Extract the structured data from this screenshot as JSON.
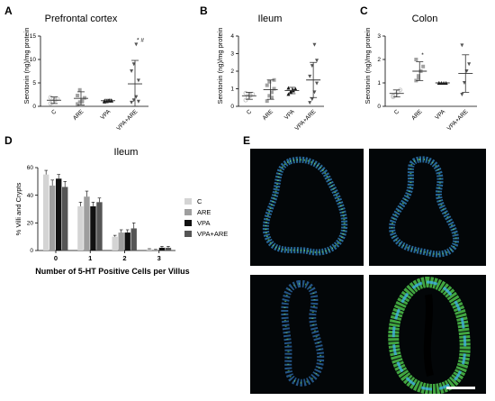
{
  "panels": {
    "A": "A",
    "B": "B",
    "C": "C",
    "D": "D",
    "E": "E"
  },
  "chart_data": [
    {
      "id": "A",
      "type": "scatter",
      "title": "Prefrontal cortex",
      "ylabel": "Serotonin (ng)/mg protein",
      "ylim": [
        0,
        15
      ],
      "yticks": [
        "0",
        "5",
        "10",
        "15"
      ],
      "categories": [
        "C",
        "ARE",
        "VPA",
        "VPA+ARE"
      ],
      "marker_colors": [
        "#c2c2c2",
        "#a2a2a2",
        "#111111",
        "#555555"
      ],
      "markers": [
        "circle",
        "square",
        "triangle-up",
        "triangle-down"
      ],
      "annotations": [
        {
          "category": "VPA+ARE",
          "text": "* #"
        }
      ],
      "series": [
        {
          "category": "C",
          "mean": 1.3,
          "sd": 0.7,
          "points": [
            0.6,
            1.0,
            1.3,
            1.6,
            1.9,
            0.9,
            1.5
          ]
        },
        {
          "category": "ARE",
          "mean": 1.7,
          "sd": 1.4,
          "points": [
            0.5,
            0.9,
            1.2,
            1.8,
            2.3,
            3.5,
            1.0
          ]
        },
        {
          "category": "VPA",
          "mean": 1.2,
          "sd": 0.3,
          "points": [
            1.0,
            1.1,
            1.2,
            1.3,
            1.2,
            1.1,
            1.3,
            1.2
          ]
        },
        {
          "category": "VPA+ARE",
          "mean": 4.8,
          "sd": 5.0,
          "points": [
            0.8,
            1.3,
            2.0,
            5.5,
            7.5,
            9.0,
            13.2,
            1.0
          ]
        }
      ]
    },
    {
      "id": "B",
      "type": "scatter",
      "title": "Ileum",
      "ylabel": "Serotonin (ng)/mg protein",
      "ylim": [
        0,
        4
      ],
      "yticks": [
        "0",
        "1",
        "2",
        "3",
        "4"
      ],
      "categories": [
        "C",
        "ARE",
        "VPA",
        "VPA+ARE"
      ],
      "marker_colors": [
        "#c2c2c2",
        "#a2a2a2",
        "#111111",
        "#555555"
      ],
      "markers": [
        "circle",
        "square",
        "triangle-up",
        "triangle-down"
      ],
      "series": [
        {
          "category": "C",
          "mean": 0.6,
          "sd": 0.2,
          "points": [
            0.35,
            0.5,
            0.6,
            0.7,
            0.75,
            0.55,
            0.65
          ]
        },
        {
          "category": "ARE",
          "mean": 0.95,
          "sd": 0.55,
          "points": [
            0.3,
            0.6,
            0.8,
            1.0,
            1.2,
            1.4,
            0.5,
            1.5
          ]
        },
        {
          "category": "VPA",
          "mean": 0.9,
          "sd": 0.18,
          "points": [
            0.7,
            0.85,
            0.9,
            1.0,
            1.05,
            0.8,
            0.95
          ]
        },
        {
          "category": "VPA+ARE",
          "mean": 1.5,
          "sd": 1.0,
          "points": [
            0.2,
            0.4,
            0.8,
            1.3,
            1.7,
            2.3,
            3.5,
            2.6
          ]
        }
      ]
    },
    {
      "id": "C",
      "type": "scatter",
      "title": "Colon",
      "ylabel": "Serotonin (ng)/mg protein",
      "ylim": [
        0,
        3
      ],
      "yticks": [
        "0",
        "1",
        "2",
        "3"
      ],
      "categories": [
        "C",
        "ARE",
        "VPA",
        "VPA+ARE"
      ],
      "marker_colors": [
        "#c2c2c2",
        "#a2a2a2",
        "#111111",
        "#555555"
      ],
      "markers": [
        "circle",
        "square",
        "triangle-up",
        "triangle-down"
      ],
      "annotations": [
        {
          "category": "ARE",
          "text": "*"
        }
      ],
      "series": [
        {
          "category": "C",
          "mean": 0.55,
          "sd": 0.15,
          "points": [
            0.4,
            0.5,
            0.6,
            0.7,
            0.45
          ]
        },
        {
          "category": "ARE",
          "mean": 1.5,
          "sd": 0.4,
          "points": [
            1.1,
            1.3,
            1.5,
            1.7,
            2.0,
            1.2
          ]
        },
        {
          "category": "VPA",
          "mean": 1.0,
          "sd": 0.0,
          "points": [
            1.0,
            1.0,
            1.0,
            1.0,
            1.0
          ]
        },
        {
          "category": "VPA+ARE",
          "mean": 1.4,
          "sd": 0.8,
          "points": [
            0.5,
            1.0,
            1.5,
            1.8,
            2.6
          ]
        }
      ]
    },
    {
      "id": "D",
      "type": "bar",
      "title": "Ileum",
      "xlabel": "Number of 5-HT Positive Cells per Villus",
      "ylabel": "% Villi and Crypts",
      "ylim": [
        0,
        60
      ],
      "yticks": [
        "0",
        "20",
        "40",
        "60"
      ],
      "categories": [
        "0",
        "1",
        "2",
        "3"
      ],
      "legend_position": "right",
      "series": [
        {
          "name": "C",
          "color": "#d4d4d4",
          "values": [
            55,
            32,
            10,
            1
          ],
          "errors": [
            3,
            3,
            1,
            0.3
          ]
        },
        {
          "name": "ARE",
          "color": "#9e9e9e",
          "values": [
            47,
            39,
            13,
            0.5
          ],
          "errors": [
            4,
            4,
            2,
            0.3
          ]
        },
        {
          "name": "VPA",
          "color": "#111111",
          "values": [
            52,
            32,
            13,
            2
          ],
          "errors": [
            3,
            3,
            2,
            1
          ]
        },
        {
          "name": "VPA+ARE",
          "color": "#555555",
          "values": [
            46,
            35,
            16,
            2
          ],
          "errors": [
            4,
            3,
            4,
            1
          ]
        }
      ]
    }
  ],
  "micrographs": {
    "scale_bar_color": "#ffffff",
    "images": [
      {
        "position": "top-left",
        "stain_colors": [
          "#2e8fd6",
          "#55c94d"
        ]
      },
      {
        "position": "top-right",
        "stain_colors": [
          "#2e8fd6",
          "#55c94d"
        ]
      },
      {
        "position": "bottom-left",
        "stain_colors": [
          "#2e8fd6",
          "#55c94d"
        ]
      },
      {
        "position": "bottom-right",
        "stain_colors": [
          "#2e8fd6",
          "#55c94d"
        ]
      }
    ]
  }
}
